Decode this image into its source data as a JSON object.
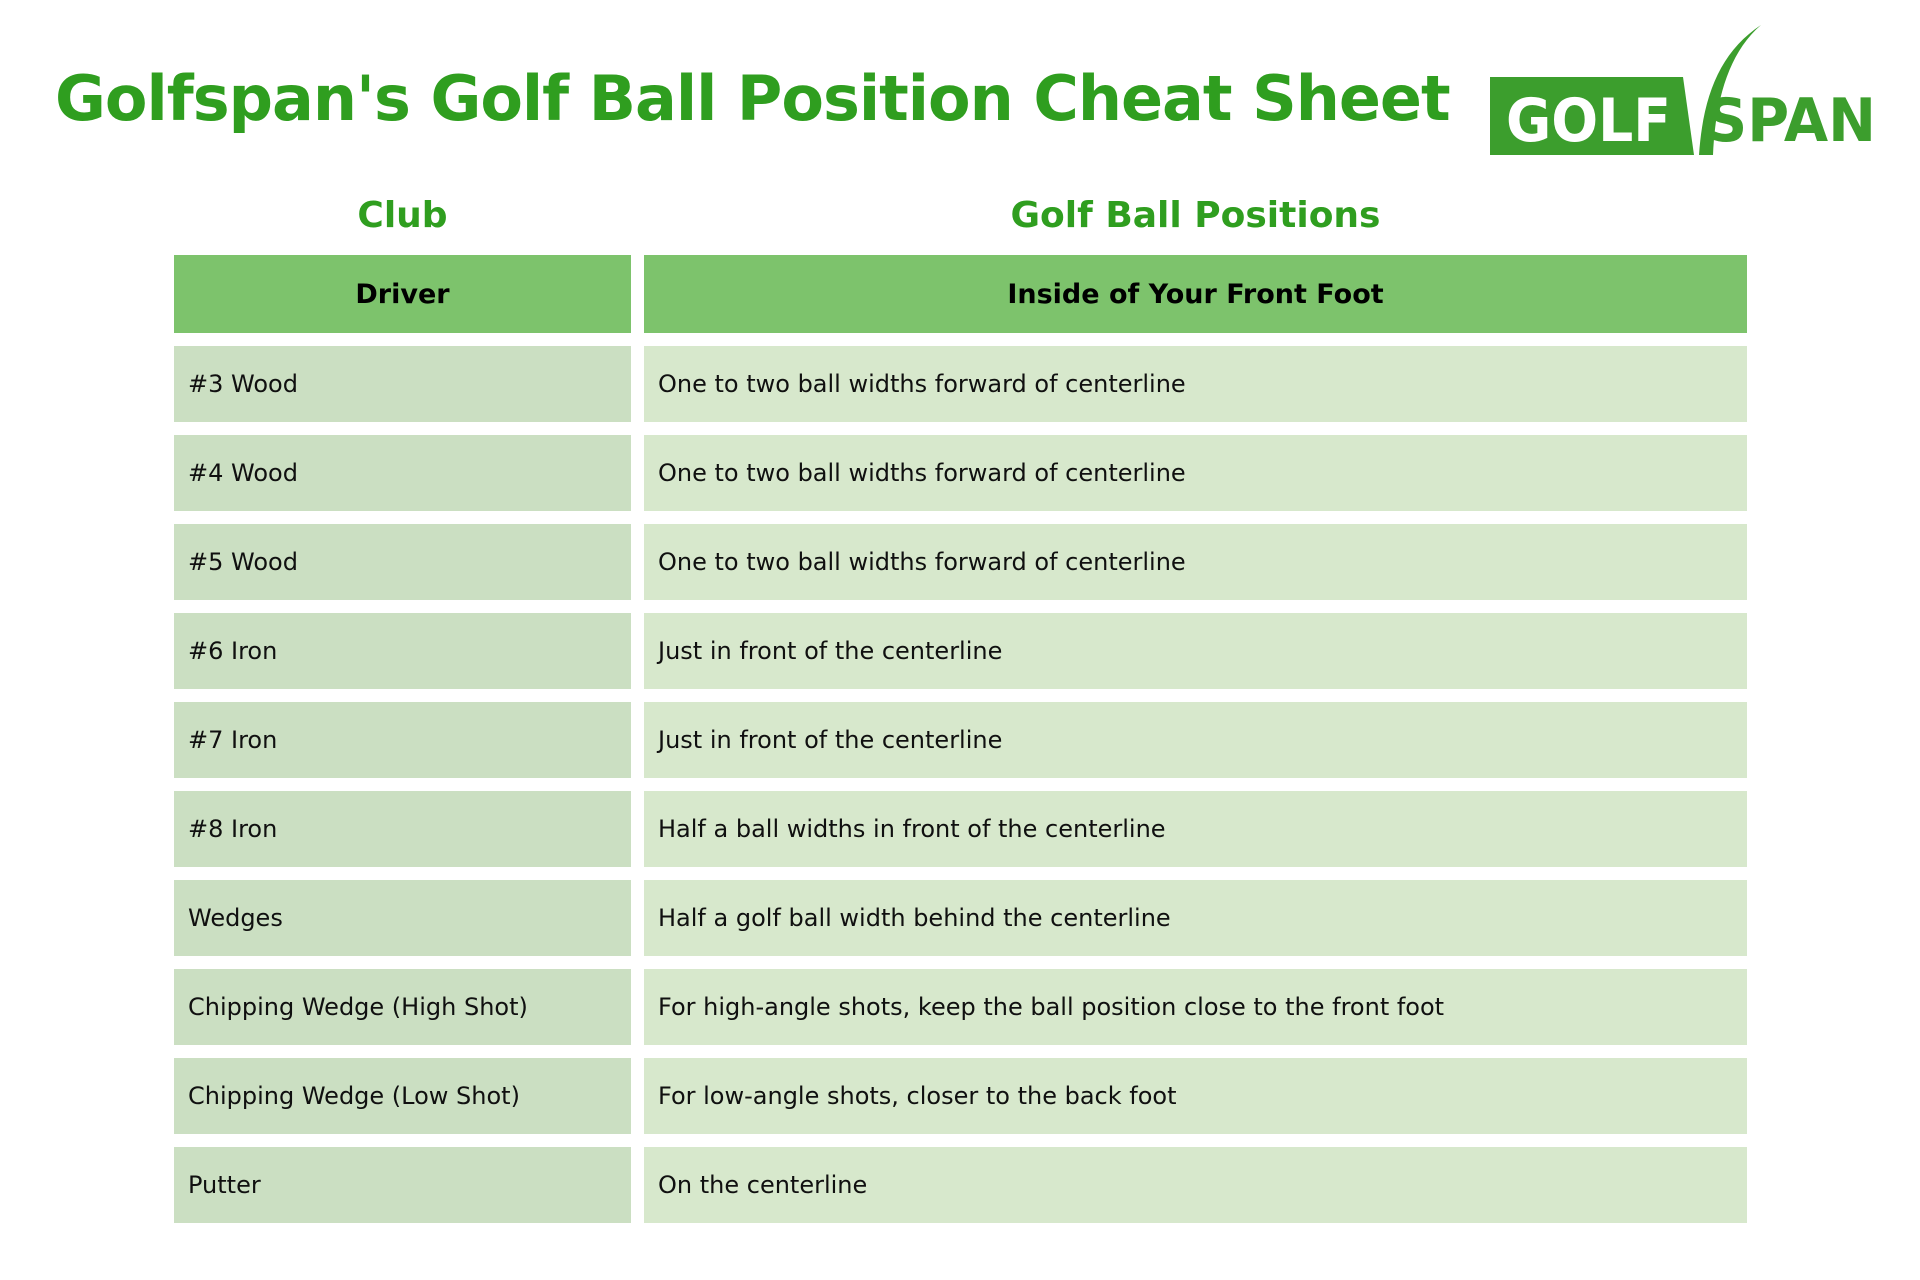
{
  "header": {
    "title": "Golfspan's Golf Ball Position Cheat Sheet",
    "logo": {
      "golf": "GOLF",
      "span": "SPAN"
    }
  },
  "table": {
    "column_headers": {
      "club": "Club",
      "positions": "Golf Ball Positions"
    },
    "header_row": {
      "club": "Driver",
      "position": "Inside of Your Front Foot"
    },
    "rows": [
      {
        "club": "#3 Wood",
        "position": "One to two ball widths forward of centerline"
      },
      {
        "club": "#4 Wood",
        "position": "One to two ball widths forward of centerline"
      },
      {
        "club": "#5 Wood",
        "position": "One to two ball widths forward of centerline"
      },
      {
        "club": "#6 Iron",
        "position": "Just in front of the centerline"
      },
      {
        "club": "#7 Iron",
        "position": "Just in front of the centerline"
      },
      {
        "club": "#8 Iron",
        "position": "Half a ball widths in front of the centerline"
      },
      {
        "club": "Wedges",
        "position": "Half a golf ball width behind the centerline"
      },
      {
        "club": "Chipping Wedge (High Shot)",
        "position": "For high-angle shots, keep the ball position close to the front foot"
      },
      {
        "club": "Chipping Wedge (Low Shot)",
        "position": "For low-angle shots, closer to the back foot"
      },
      {
        "club": "Putter",
        "position": "On the centerline"
      }
    ]
  },
  "colors": {
    "title_green": "#2f9e1f",
    "logo_green": "#3c9e2d",
    "header_row_bg": "#7dc36c",
    "club_cell_bg": "#cbdfc2",
    "position_cell_bg": "#d7e8cc",
    "text": "#101010"
  }
}
